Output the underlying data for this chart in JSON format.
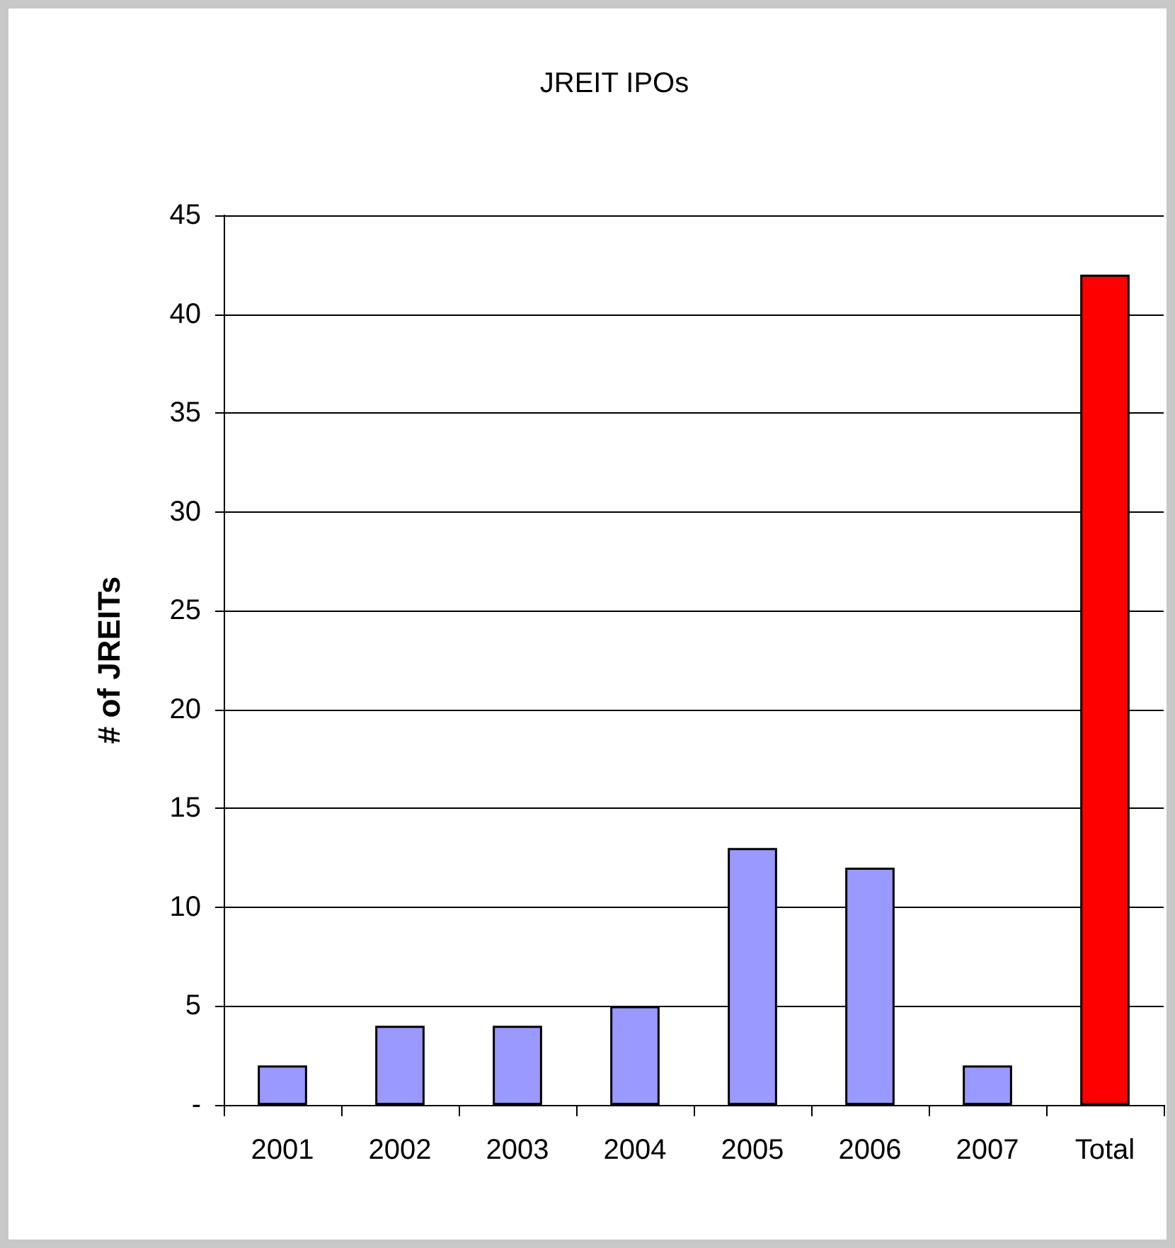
{
  "chart_data": {
    "type": "bar",
    "title": "JREIT IPOs",
    "ylabel": "# of JREITs",
    "categories": [
      "2001",
      "2002",
      "2003",
      "2004",
      "2005",
      "2006",
      "2007",
      "Total"
    ],
    "values": [
      2,
      4,
      4,
      5,
      13,
      12,
      2,
      42
    ],
    "colors": [
      "#9999ff",
      "#9999ff",
      "#9999ff",
      "#9999ff",
      "#9999ff",
      "#9999ff",
      "#9999ff",
      "#ff0000"
    ],
    "ylim": [
      0,
      45
    ],
    "yticks": [
      {
        "value": 0,
        "label": "-"
      },
      5,
      10,
      15,
      20,
      25,
      30,
      35,
      40,
      45
    ],
    "grid": "y"
  }
}
